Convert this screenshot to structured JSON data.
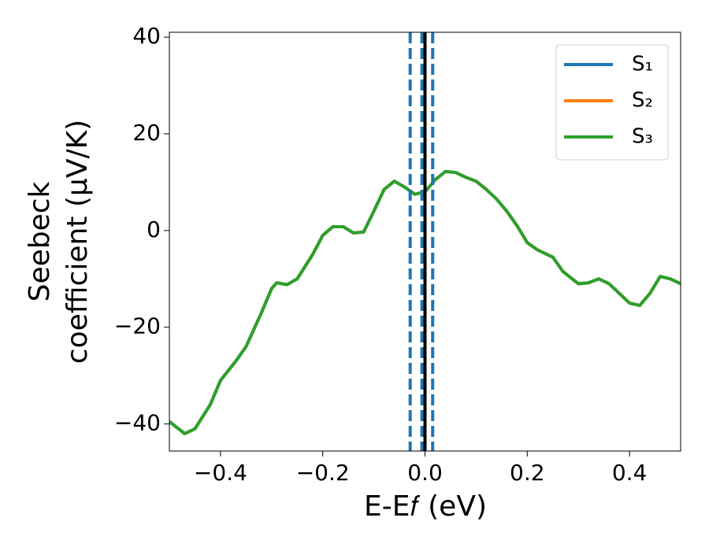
{
  "chart_data": {
    "type": "line",
    "xlabel": "E-E𝑓 (eV)",
    "ylabel": [
      "Seebeck",
      "coefficient  (μV/K)"
    ],
    "x": [
      -0.5,
      -0.47,
      -0.45,
      -0.42,
      -0.4,
      -0.37,
      -0.35,
      -0.32,
      -0.3,
      -0.29,
      -0.27,
      -0.25,
      -0.22,
      -0.2,
      -0.18,
      -0.16,
      -0.14,
      -0.12,
      -0.1,
      -0.08,
      -0.06,
      -0.04,
      -0.02,
      0,
      0.02,
      0.04,
      0.06,
      0.08,
      0.1,
      0.12,
      0.14,
      0.16,
      0.18,
      0.2,
      0.22,
      0.25,
      0.27,
      0.3,
      0.32,
      0.34,
      0.36,
      0.38,
      0.4,
      0.42,
      0.44,
      0.46,
      0.48,
      0.5
    ],
    "series": [
      {
        "name": "S₁",
        "color": "#1f77b4",
        "values": [
          -39.5,
          -42,
          -41,
          -36,
          -31,
          -27,
          -24,
          -17,
          -12,
          -10.8,
          -11.2,
          -10,
          -5,
          -1,
          0.8,
          0.8,
          -0.5,
          -0.3,
          4,
          8.5,
          10.2,
          9,
          7.5,
          8,
          10.5,
          12.2,
          12,
          11,
          10.2,
          8.5,
          6.5,
          4,
          1,
          -2.5,
          -4,
          -5.5,
          -8.5,
          -11,
          -10.8,
          -10,
          -11,
          -13,
          -15,
          -15.5,
          -13,
          -9.5,
          -10,
          -11
        ]
      },
      {
        "name": "S₂",
        "color": "#ff7f0e",
        "values": [
          -39.5,
          -42,
          -41,
          -36,
          -31,
          -27,
          -24,
          -17,
          -12,
          -10.8,
          -11.2,
          -10,
          -5,
          -1,
          0.8,
          0.8,
          -0.5,
          -0.3,
          4,
          8.5,
          10.2,
          9,
          7.5,
          8,
          10.5,
          12.2,
          12,
          11,
          10.2,
          8.5,
          6.5,
          4,
          1,
          -2.5,
          -4,
          -5.5,
          -8.5,
          -11,
          -10.8,
          -10,
          -11,
          -13,
          -15,
          -15.5,
          -13,
          -9.5,
          -10,
          -11
        ]
      },
      {
        "name": "S₃",
        "color": "#2ca02c",
        "values": [
          -39.5,
          -42,
          -41,
          -36,
          -31,
          -27,
          -24,
          -17,
          -12,
          -10.8,
          -11.2,
          -10,
          -5,
          -1,
          0.8,
          0.8,
          -0.5,
          -0.3,
          4,
          8.5,
          10.2,
          9,
          7.5,
          8,
          10.5,
          12.2,
          12,
          11,
          10.2,
          8.5,
          6.5,
          4,
          1,
          -2.5,
          -4,
          -5.5,
          -8.5,
          -11,
          -10.8,
          -10,
          -11,
          -13,
          -15,
          -15.5,
          -13,
          -9.5,
          -10,
          -11
        ]
      }
    ],
    "vlines": [
      {
        "x": -0.029,
        "color": "#1f77b4",
        "style": "dashed"
      },
      {
        "x": -0.006,
        "color": "#1f77b4",
        "style": "dashed"
      },
      {
        "x": 0.015,
        "color": "#1f77b4",
        "style": "dashed"
      },
      {
        "x": 0,
        "color": "#000000",
        "style": "solid"
      }
    ],
    "xlim": [
      -0.5,
      0.5
    ],
    "ylim": [
      -45.6,
      41
    ],
    "xticks": [
      {
        "value": -0.4,
        "label": "−0.4"
      },
      {
        "value": -0.2,
        "label": "−0.2"
      },
      {
        "value": 0,
        "label": "0.0"
      },
      0.2,
      0.4
    ],
    "yticks": [
      {
        "value": -40,
        "label": "−40"
      },
      {
        "value": -20,
        "label": "−20"
      },
      0,
      20,
      40
    ],
    "legend": "upper right",
    "grid": false
  }
}
